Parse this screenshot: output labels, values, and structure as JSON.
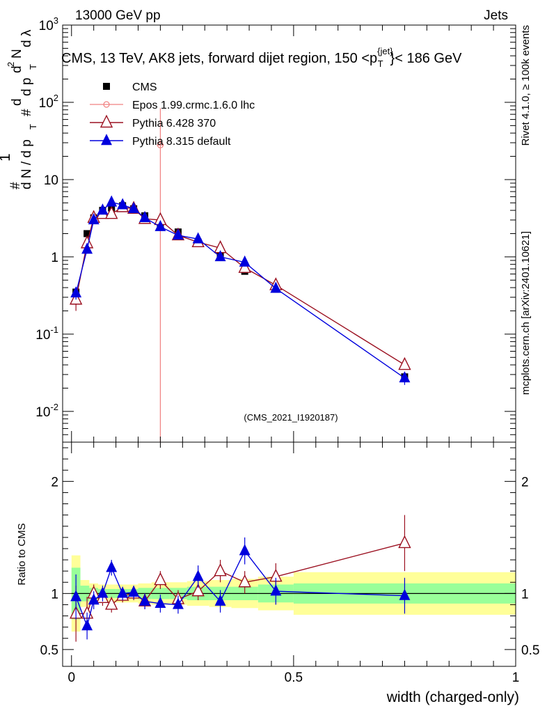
{
  "header": {
    "left_label": "13000 GeV pp",
    "right_label": "Jets",
    "side_label_1": "Rivet 4.1.0, ≥ 100k events",
    "side_label_2": "mcplots.cern.ch [arXiv:2401.10621]",
    "watermark": "(CMS_2021_I1920187)"
  },
  "colors": {
    "cms": "#000000",
    "epos": "#f08080",
    "pythia6": "#9b1020",
    "pythia8": "#0000dd",
    "band_inner": "#99ff99",
    "band_outer": "#ffff99"
  },
  "chart_data": [
    {
      "type": "scatter",
      "title": "CMS, 13 TeV, AK8 jets, forward dijet region, 150 <p",
      "title_sup": "{jet}",
      "title_sub": "T",
      "title_tail": "}< 186 GeV",
      "ylabel_parts": [
        "#",
        "1",
        "d N / d p",
        "T",
        "#",
        "d",
        "d p",
        "T",
        "d",
        "2",
        "N",
        "d λ"
      ],
      "yscale": "log",
      "ylim": [
        0.004,
        1000
      ],
      "xlim": [
        -0.02,
        1.0
      ],
      "ytick_labels": [
        "10^-2",
        "10^-1",
        "1",
        "10",
        "10^2",
        "10^3"
      ],
      "ytick_values": [
        0.01,
        0.1,
        1,
        10,
        100,
        1000
      ],
      "legend": [
        "CMS",
        "Epos 1.99.crmc.1.6.0 lhc",
        "Pythia 6.428 370",
        "Pythia 8.315 default"
      ],
      "legend_position": "top-left",
      "series": [
        {
          "name": "CMS",
          "marker": "square",
          "x": [
            0.01,
            0.035,
            0.05,
            0.07,
            0.09,
            0.115,
            0.14,
            0.165,
            0.2,
            0.24,
            0.285,
            0.335,
            0.39,
            0.46,
            0.75
          ],
          "y": [
            0.35,
            2.0,
            3.2,
            4.0,
            4.3,
            4.6,
            4.2,
            3.4,
            2.7,
            2.1,
            1.55,
            1.05,
            0.65,
            0.38,
            0.028
          ],
          "err": [
            0.05,
            0.1,
            0.15,
            0.2,
            0.2,
            0.2,
            0.2,
            0.15,
            0.15,
            0.1,
            0.08,
            0.06,
            0.04,
            0.03,
            0.004
          ]
        },
        {
          "name": "Epos 1.99.crmc.1.6.0 lhc",
          "marker": "cross",
          "x": [
            0.2
          ],
          "y": [
            28
          ],
          "err": [
            28
          ]
        },
        {
          "name": "Pythia 6.428 370",
          "marker": "open-triangle",
          "x": [
            0.01,
            0.035,
            0.05,
            0.07,
            0.09,
            0.115,
            0.14,
            0.165,
            0.2,
            0.24,
            0.285,
            0.335,
            0.39,
            0.46,
            0.75
          ],
          "y": [
            0.28,
            1.5,
            3.2,
            3.6,
            3.6,
            4.4,
            4.2,
            3.1,
            3.0,
            1.9,
            1.55,
            1.3,
            0.72,
            0.43,
            0.04
          ],
          "err": [
            0.08,
            0.2,
            0.25,
            0.25,
            0.25,
            0.25,
            0.25,
            0.2,
            0.2,
            0.15,
            0.1,
            0.1,
            0.06,
            0.05,
            0.005
          ]
        },
        {
          "name": "Pythia 8.315 default",
          "marker": "filled-triangle",
          "x": [
            0.01,
            0.035,
            0.05,
            0.07,
            0.09,
            0.115,
            0.14,
            0.165,
            0.2,
            0.24,
            0.285,
            0.335,
            0.39,
            0.46,
            0.75
          ],
          "y": [
            0.34,
            1.25,
            3.0,
            4.0,
            5.1,
            4.7,
            4.2,
            3.2,
            2.45,
            1.9,
            1.7,
            1.0,
            0.85,
            0.39,
            0.027
          ],
          "err": [
            0.06,
            0.15,
            0.2,
            0.25,
            0.3,
            0.25,
            0.25,
            0.2,
            0.15,
            0.12,
            0.1,
            0.08,
            0.07,
            0.04,
            0.005
          ]
        }
      ]
    },
    {
      "type": "scatter",
      "ylabel": "Ratio to CMS",
      "xlabel": "width (charged-only)",
      "ylim": [
        0.35,
        2.35
      ],
      "xlim": [
        -0.02,
        1.0
      ],
      "ytick_labels": [
        "0.5",
        "1",
        "2"
      ],
      "ytick_values": [
        0.5,
        1,
        2
      ],
      "xtick_labels": [
        "0",
        "0.5",
        "1"
      ],
      "xtick_values": [
        0,
        0.5,
        1
      ],
      "bands": {
        "edges": [
          0.0,
          0.02,
          0.04,
          0.06,
          0.08,
          0.1,
          0.125,
          0.15,
          0.18,
          0.22,
          0.26,
          0.31,
          0.36,
          0.42,
          0.5,
          1.0
        ],
        "inner": [
          0.23,
          0.07,
          0.05,
          0.04,
          0.04,
          0.04,
          0.04,
          0.05,
          0.05,
          0.05,
          0.06,
          0.06,
          0.06,
          0.08,
          0.09
        ],
        "outer": [
          0.34,
          0.12,
          0.09,
          0.08,
          0.08,
          0.08,
          0.08,
          0.09,
          0.1,
          0.1,
          0.11,
          0.12,
          0.13,
          0.15,
          0.19
        ]
      },
      "series": [
        {
          "name": "Pythia 6.428 370",
          "x": [
            0.01,
            0.035,
            0.05,
            0.07,
            0.09,
            0.115,
            0.14,
            0.165,
            0.2,
            0.24,
            0.285,
            0.335,
            0.39,
            0.46,
            0.75
          ],
          "y": [
            0.82,
            0.82,
            1.0,
            0.96,
            0.9,
            0.98,
            1.0,
            0.93,
            1.12,
            0.95,
            1.02,
            1.2,
            1.1,
            1.15,
            1.45
          ],
          "err": [
            0.25,
            0.15,
            0.08,
            0.07,
            0.07,
            0.06,
            0.06,
            0.07,
            0.08,
            0.08,
            0.08,
            0.1,
            0.1,
            0.12,
            0.25
          ]
        },
        {
          "name": "Pythia 8.315 default",
          "x": [
            0.01,
            0.035,
            0.05,
            0.07,
            0.09,
            0.115,
            0.14,
            0.165,
            0.2,
            0.24,
            0.285,
            0.335,
            0.39,
            0.46,
            0.75
          ],
          "y": [
            0.97,
            0.71,
            0.94,
            1.0,
            1.23,
            1.0,
            1.01,
            0.93,
            0.91,
            0.9,
            1.15,
            0.93,
            1.38,
            1.02,
            0.98
          ],
          "err": [
            0.2,
            0.12,
            0.08,
            0.07,
            0.07,
            0.06,
            0.06,
            0.07,
            0.08,
            0.08,
            0.1,
            0.1,
            0.12,
            0.12,
            0.16
          ]
        }
      ]
    }
  ]
}
